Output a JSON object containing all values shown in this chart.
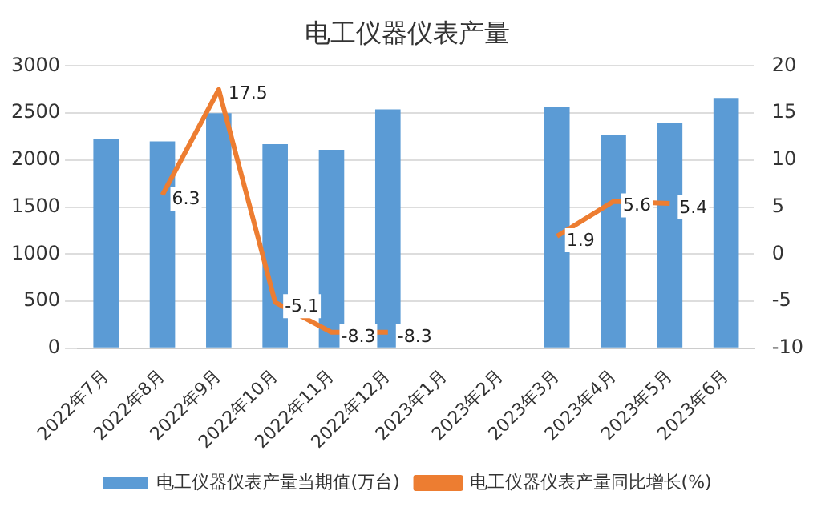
{
  "chart_data": {
    "type": "bar",
    "title": "电工仪器仪表产量",
    "categories": [
      "2022年7月",
      "2022年8月",
      "2022年9月",
      "2022年10月",
      "2022年11月",
      "2022年12月",
      "2023年1月",
      "2023年2月",
      "2023年3月",
      "2023年4月",
      "2023年5月",
      "2023年6月"
    ],
    "series": [
      {
        "name": "电工仪器仪表产量当期值(万台)",
        "color": "#5b9bd5",
        "values": [
          2220,
          2200,
          2500,
          2170,
          2110,
          2540,
          null,
          null,
          2570,
          2270,
          2400,
          2660
        ]
      },
      {
        "name": "电工仪器仪表产量同比增长(%)",
        "type": "line",
        "axis": "y2",
        "color": "#ed7d31",
        "values": [
          null,
          6.3,
          17.5,
          -5.1,
          -8.3,
          -8.3,
          null,
          null,
          1.9,
          5.6,
          5.4,
          null
        ],
        "value_labels": [
          null,
          "6.3",
          "17.5",
          "-5.1",
          "-8.3",
          "-8.3",
          null,
          null,
          "1.9",
          "5.6",
          "5.4",
          null
        ]
      }
    ],
    "ylim": [
      0,
      3000
    ],
    "yticks": [
      0,
      500,
      1000,
      1500,
      2000,
      2500,
      3000
    ],
    "y2lim": [
      -10,
      20
    ],
    "y2ticks": [
      -10,
      -5,
      0,
      5,
      10,
      15,
      20
    ],
    "grid": "y",
    "legend": "bottom",
    "marker": "none"
  }
}
